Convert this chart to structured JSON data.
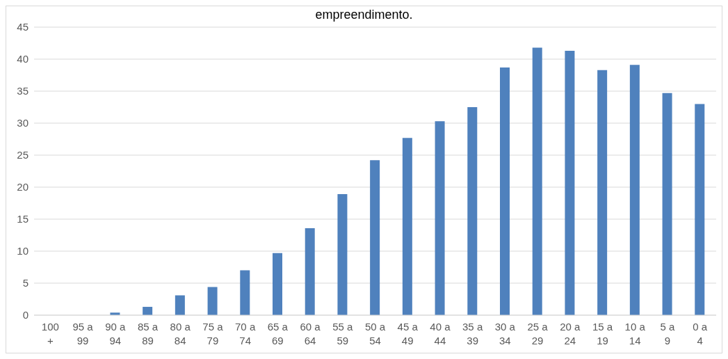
{
  "chart_data": {
    "type": "bar",
    "title": "empreendimento.",
    "categories": [
      "100 +",
      "95 a 99",
      "90 a 94",
      "85 a 89",
      "80 a 84",
      "75 a 79",
      "70 a 74",
      "65 a 69",
      "60 a 64",
      "55 a 59",
      "50 a 54",
      "45 a 49",
      "40 a 44",
      "35 a 39",
      "30 a 34",
      "25 a 29",
      "20 a 24",
      "15 a 19",
      "10 a 14",
      "5 a 9",
      "0 a 4"
    ],
    "values": [
      0,
      0,
      0.4,
      1.3,
      3.1,
      4.4,
      7.0,
      9.7,
      13.6,
      18.9,
      24.2,
      27.7,
      30.3,
      32.5,
      38.7,
      41.8,
      41.3,
      38.3,
      39.1,
      34.7,
      33.0
    ],
    "color": "#4f81bd",
    "ylim": [
      0,
      45
    ],
    "yticks": [
      0,
      5,
      10,
      15,
      20,
      25,
      30,
      35,
      40,
      45
    ],
    "grid": "y"
  }
}
